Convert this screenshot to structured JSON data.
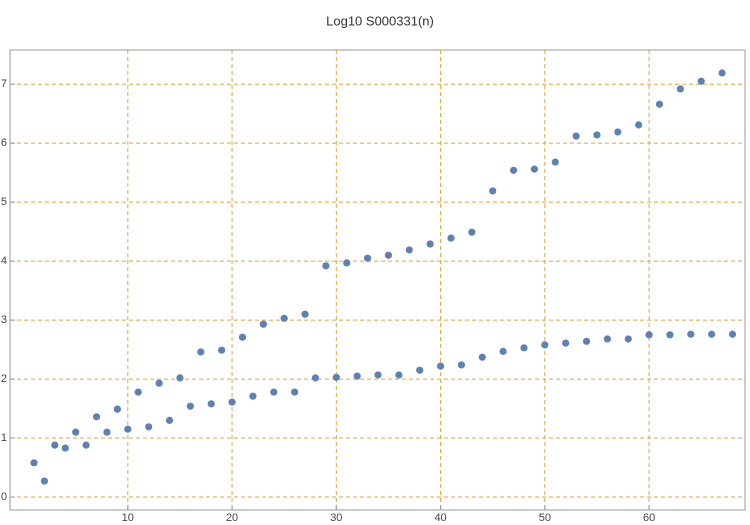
{
  "chart_data": {
    "type": "scatter",
    "title": "Log10 S000331(n)",
    "x": [
      1,
      2,
      3,
      4,
      5,
      6,
      7,
      8,
      9,
      10,
      11,
      12,
      13,
      14,
      15,
      16,
      17,
      18,
      19,
      20,
      21,
      22,
      23,
      24,
      25,
      26,
      27,
      28,
      29,
      30,
      31,
      32,
      33,
      34,
      35,
      36,
      37,
      38,
      39,
      40,
      41,
      42,
      43,
      44,
      45,
      46,
      47,
      48,
      49,
      50,
      51,
      52,
      53,
      54,
      55,
      56,
      57,
      58,
      59,
      60,
      61,
      62,
      63,
      64,
      65,
      66,
      67,
      68
    ],
    "values": [
      0.58,
      0.27,
      0.88,
      0.83,
      1.1,
      0.88,
      1.36,
      1.1,
      1.49,
      1.15,
      1.78,
      1.19,
      1.93,
      1.3,
      2.02,
      1.54,
      2.46,
      1.58,
      2.49,
      1.61,
      2.71,
      1.71,
      2.93,
      1.78,
      3.03,
      1.78,
      3.1,
      2.02,
      3.92,
      2.03,
      3.97,
      2.05,
      4.05,
      2.07,
      4.1,
      2.07,
      4.19,
      2.15,
      4.29,
      2.22,
      4.39,
      2.24,
      4.49,
      2.37,
      5.19,
      2.47,
      5.54,
      2.53,
      5.56,
      2.58,
      5.68,
      2.61,
      6.12,
      2.64,
      6.14,
      2.68,
      6.19,
      2.68,
      6.31,
      2.75,
      6.66,
      2.75,
      6.92,
      2.76,
      7.05,
      2.76,
      7.19,
      2.76
    ],
    "color": "#5e81b5",
    "grid_color": "#e8a33c",
    "grid": true,
    "xlim": [
      -1.3,
      69.2
    ],
    "xticks": [
      10,
      20,
      30,
      40,
      50,
      60
    ],
    "ylim": [
      -0.22,
      7.58
    ],
    "yticks": [
      0,
      1,
      2,
      3,
      4,
      5,
      6,
      7
    ]
  }
}
